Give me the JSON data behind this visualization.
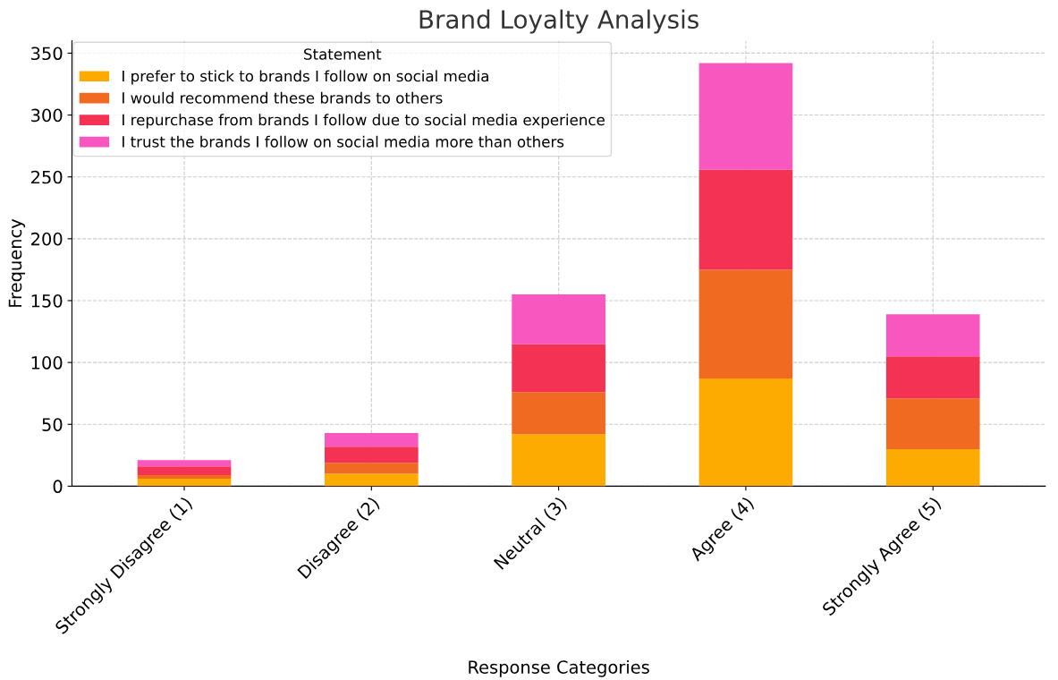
{
  "chart_data": {
    "type": "bar",
    "title": "Brand Loyalty Analysis",
    "xlabel": "Response Categories",
    "ylabel": "Frequency",
    "legend_title": "Statement",
    "categories": [
      "Strongly Disagree (1)",
      "Disagree (2)",
      "Neutral (3)",
      "Agree (4)",
      "Strongly Agree (5)"
    ],
    "stacked": true,
    "series": [
      {
        "name": "I prefer to stick to brands I follow on social media",
        "color": "#fdab00",
        "values": [
          6,
          10,
          42,
          87,
          30
        ]
      },
      {
        "name": "I would recommend these brands to others",
        "color": "#f06a22",
        "values": [
          3,
          9,
          34,
          88,
          41
        ]
      },
      {
        "name": "I repurchase from brands I follow due to social media experience",
        "color": "#f43253",
        "values": [
          7,
          13,
          39,
          81,
          34
        ]
      },
      {
        "name": "I trust the brands I follow on social media more than others",
        "color": "#f857c0",
        "values": [
          5,
          11,
          40,
          86,
          34
        ]
      }
    ],
    "ylim": [
      0,
      360
    ],
    "yticks": [
      0,
      50,
      100,
      150,
      200,
      250,
      300,
      350
    ],
    "grid": true,
    "legend": "top left"
  }
}
